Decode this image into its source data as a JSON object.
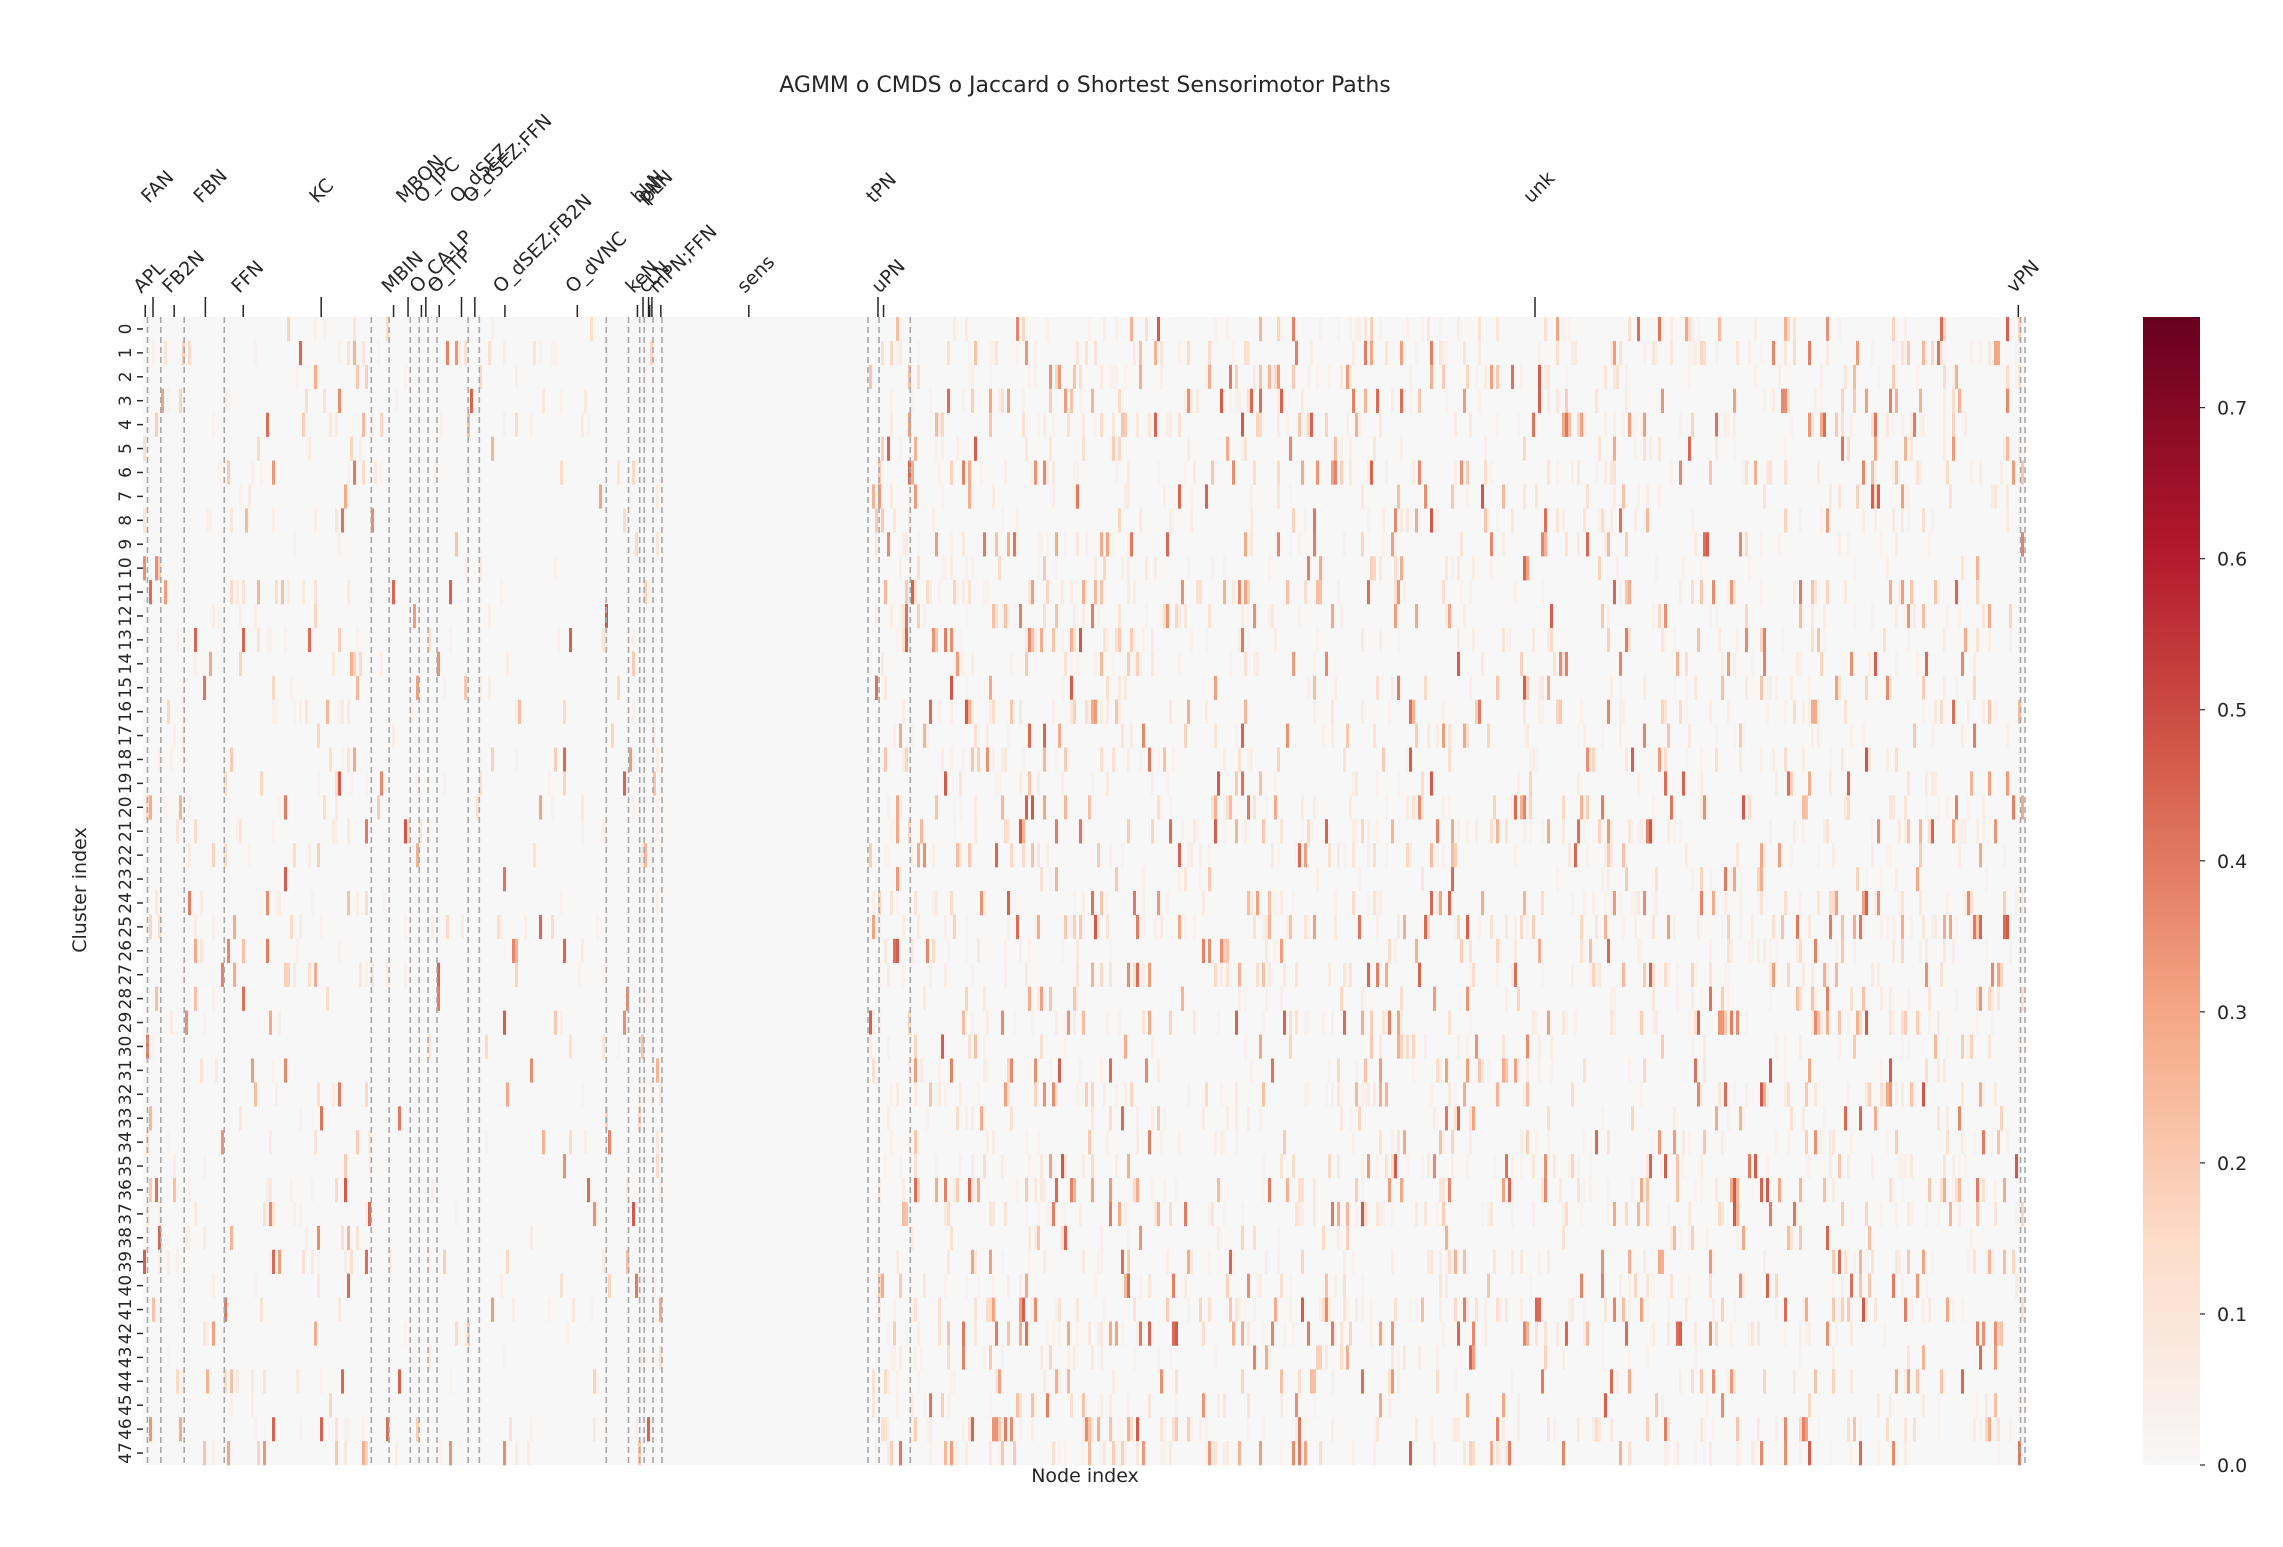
{
  "chart_data": {
    "type": "heatmap",
    "title": "AGMM o CMDS o Jaccard o Shortest Sensorimotor Paths",
    "xlabel": "Node index",
    "ylabel": "Cluster index",
    "n_clusters": 48,
    "row_tick_labels": [
      "0",
      "1",
      "2",
      "3",
      "4",
      "5",
      "6",
      "7",
      "8",
      "9",
      "10",
      "11",
      "12",
      "13",
      "14",
      "15",
      "16",
      "17",
      "18",
      "19",
      "20",
      "21",
      "22",
      "23",
      "24",
      "25",
      "26",
      "27",
      "28",
      "29",
      "30",
      "31",
      "32",
      "33",
      "34",
      "35",
      "36",
      "37",
      "38",
      "39",
      "40",
      "41",
      "42",
      "43",
      "44",
      "45",
      "46",
      "47"
    ],
    "group_labels_upper": [
      {
        "label": "FAN",
        "x": 9
      },
      {
        "label": "FBN",
        "x": 56
      },
      {
        "label": "KC",
        "x": 160
      },
      {
        "label": "MBON",
        "x": 238
      },
      {
        "label": "O_IPC",
        "x": 254
      },
      {
        "label": "O_dSEZ",
        "x": 286
      },
      {
        "label": "O_dSEZ;FFN",
        "x": 298
      },
      {
        "label": "bLN",
        "x": 449
      },
      {
        "label": "pLN",
        "x": 457
      },
      {
        "label": "pN",
        "x": 454
      },
      {
        "label": "tPN",
        "x": 660
      },
      {
        "label": "unk",
        "x": 1250
      }
    ],
    "group_labels_lower": [
      {
        "label": "APL",
        "x": 2
      },
      {
        "label": "FB2N",
        "x": 28
      },
      {
        "label": "FFN",
        "x": 90
      },
      {
        "label": "MBIN",
        "x": 225
      },
      {
        "label": "O_CA-LP",
        "x": 250
      },
      {
        "label": "O_ITP",
        "x": 266
      },
      {
        "label": "O_dSEZ;FB2N",
        "x": 325
      },
      {
        "label": "O_dVNC",
        "x": 390
      },
      {
        "label": "cLN",
        "x": 455
      },
      {
        "label": "keN",
        "x": 444
      },
      {
        "label": "mPN;FFN",
        "x": 465
      },
      {
        "label": "sens",
        "x": 544
      },
      {
        "label": "uPN",
        "x": 665
      },
      {
        "label": "vPN",
        "x": 1684
      }
    ],
    "group_boundaries": [
      4,
      16,
      37,
      73,
      205,
      221,
      240,
      248,
      256,
      264,
      292,
      302,
      416,
      436,
      446,
      450,
      458,
      466,
      651,
      661,
      689,
      1686,
      1690
    ],
    "n_nodes": 1690,
    "vmin": 0.0,
    "vmax": 0.76,
    "colorbar_ticks": [
      0.0,
      0.1,
      0.2,
      0.3,
      0.4,
      0.5,
      0.6,
      0.7
    ],
    "colorbar_tick_labels": [
      "0.0",
      "0.1",
      "0.2",
      "0.3",
      "0.4",
      "0.5",
      "0.6",
      "0.7"
    ],
    "colormap": [
      "#f7f7f7",
      "#fddbc7",
      "#f4a582",
      "#d6604d",
      "#b2182b",
      "#67001f"
    ],
    "grid": false,
    "legend": "colorbar-right"
  }
}
